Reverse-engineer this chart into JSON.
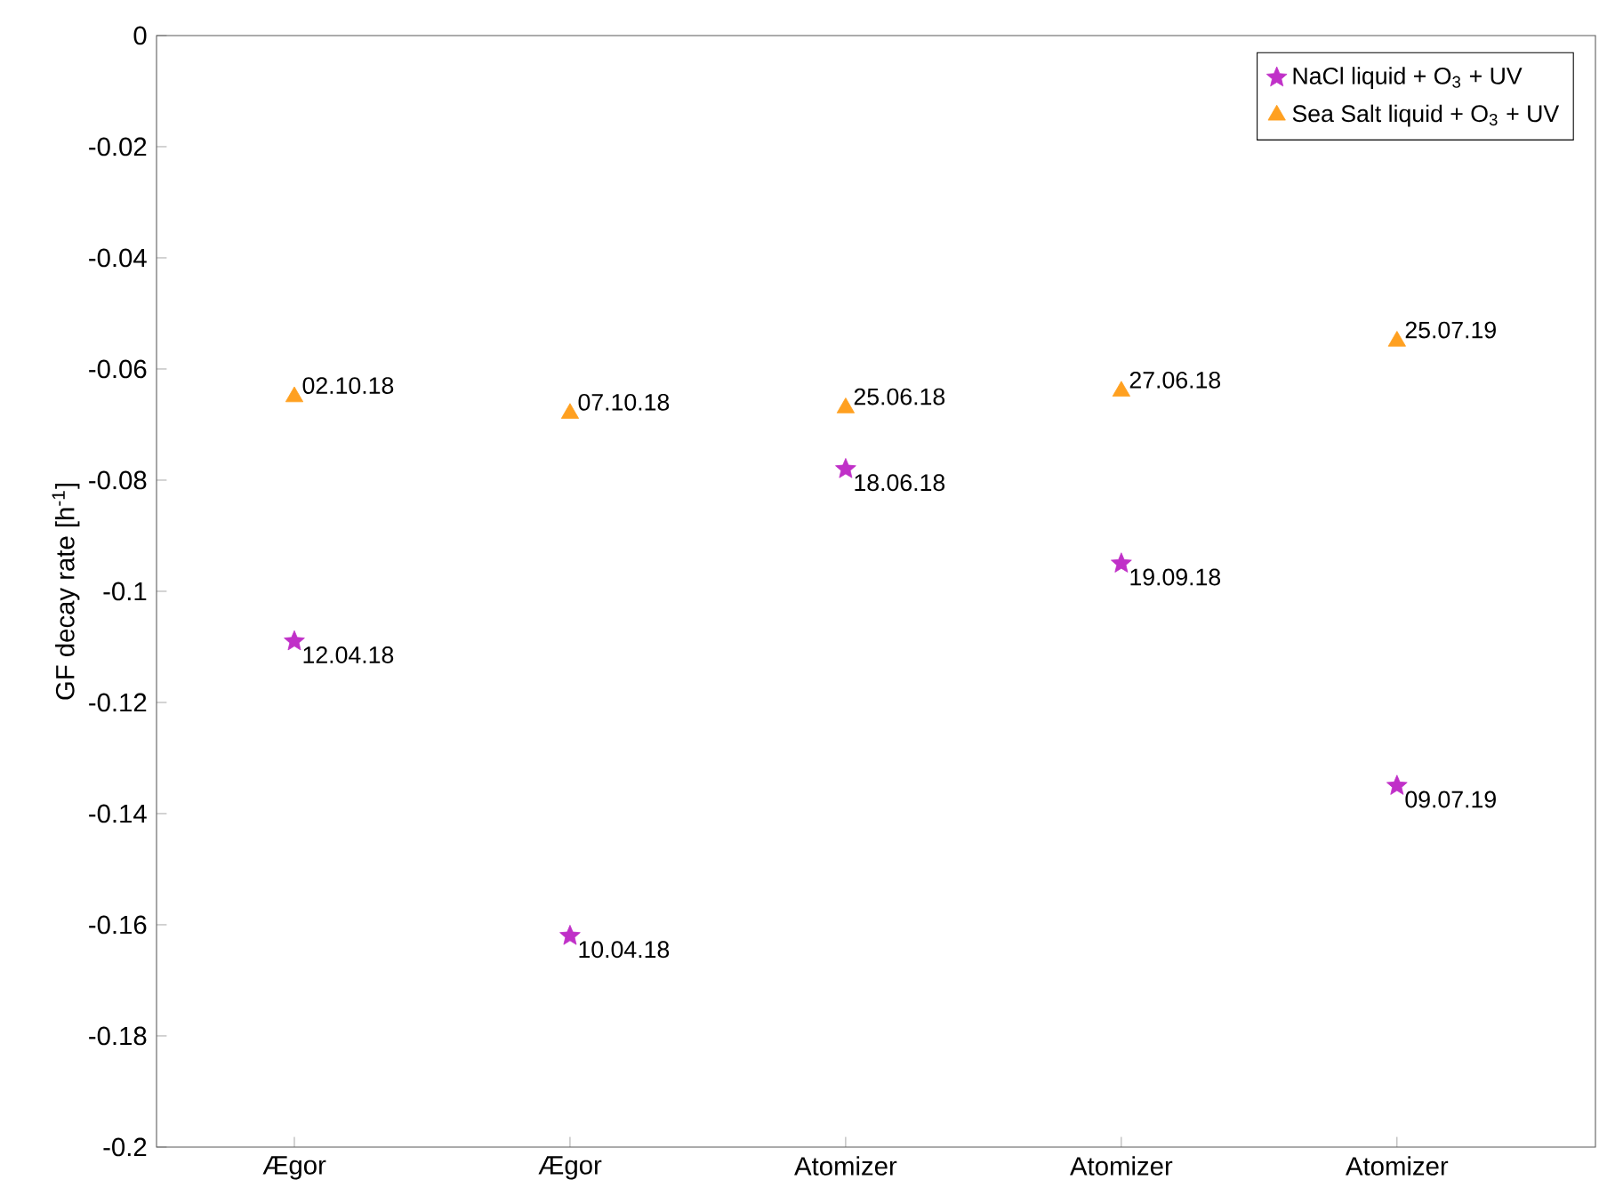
{
  "chart_data": {
    "type": "scatter",
    "ylabel": "GF decay rate [h$^{-1}$]",
    "categories": [
      "Ægor",
      "Ægor",
      "Atomizer",
      "Atomizer",
      "Atomizer"
    ],
    "ylim": [
      -0.2,
      0
    ],
    "yticks": [
      -0.2,
      -0.18,
      -0.16,
      -0.14,
      -0.12,
      -0.1,
      -0.08,
      -0.06,
      -0.04,
      -0.02,
      0
    ],
    "grid": false,
    "legend": "top right",
    "series": [
      {
        "name": "NaCl liquid + O$_{3}$ + UV",
        "color": "#c030c8",
        "marker": "star",
        "values": [
          -0.109,
          -0.162,
          -0.078,
          -0.095,
          -0.135
        ],
        "value_labels": [
          "12.04.18",
          "10.04.18",
          "18.06.18",
          "19.09.18",
          "09.07.19"
        ]
      },
      {
        "name": "Sea Salt liquid + O$_{3}$ + UV",
        "color": "#ffa020",
        "marker": "triangle",
        "values": [
          -0.065,
          -0.068,
          -0.067,
          -0.064,
          -0.055
        ],
        "value_labels": [
          "02.10.18",
          "07.10.18",
          "25.06.18",
          "27.06.18",
          "25.07.19"
        ]
      }
    ]
  }
}
